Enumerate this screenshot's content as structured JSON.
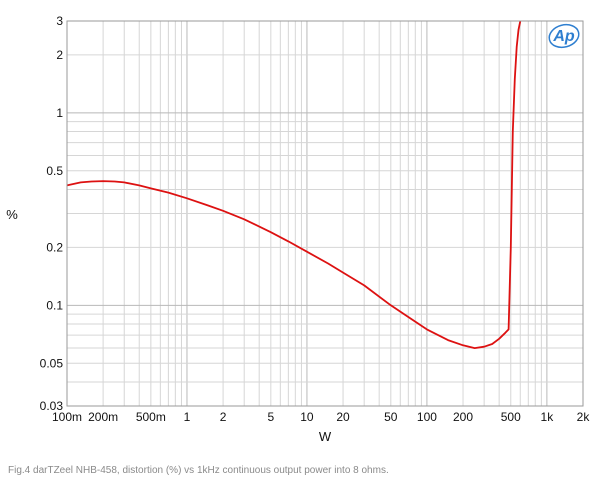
{
  "caption": "Fig.4 darTZeel NHB-458, distortion (%) vs 1kHz continuous output power into 8 ohms.",
  "logo": {
    "text": "Ap",
    "color": "#2f7fd0"
  },
  "chart_data": {
    "type": "line",
    "title": "",
    "xlabel": "W",
    "ylabel": "%",
    "xscale": "log",
    "yscale": "log",
    "xlim": [
      0.1,
      2000
    ],
    "ylim": [
      0.03,
      3
    ],
    "grid": true,
    "legend": "none",
    "x_ticks": [
      {
        "value": 0.1,
        "label": "100m"
      },
      {
        "value": 0.2,
        "label": "200m"
      },
      {
        "value": 0.5,
        "label": "500m"
      },
      {
        "value": 1,
        "label": "1"
      },
      {
        "value": 2,
        "label": "2"
      },
      {
        "value": 5,
        "label": "5"
      },
      {
        "value": 10,
        "label": "10"
      },
      {
        "value": 20,
        "label": "20"
      },
      {
        "value": 50,
        "label": "50"
      },
      {
        "value": 100,
        "label": "100"
      },
      {
        "value": 200,
        "label": "200"
      },
      {
        "value": 500,
        "label": "500"
      },
      {
        "value": 1000,
        "label": "1k"
      },
      {
        "value": 2000,
        "label": "2k"
      }
    ],
    "y_ticks": [
      {
        "value": 0.03,
        "label": "0.03"
      },
      {
        "value": 0.05,
        "label": "0.05"
      },
      {
        "value": 0.1,
        "label": "0.1"
      },
      {
        "value": 0.2,
        "label": "0.2"
      },
      {
        "value": 0.5,
        "label": "0.5"
      },
      {
        "value": 1,
        "label": "1"
      },
      {
        "value": 2,
        "label": "2"
      },
      {
        "value": 3,
        "label": "3"
      }
    ],
    "series": [
      {
        "color": "#dd1111",
        "x": [
          0.1,
          0.13,
          0.16,
          0.2,
          0.25,
          0.3,
          0.4,
          0.5,
          0.7,
          1,
          1.5,
          2,
          3,
          5,
          7,
          10,
          15,
          20,
          30,
          50,
          70,
          100,
          150,
          200,
          250,
          300,
          350,
          400,
          450,
          480,
          500,
          520,
          540,
          560,
          580,
          600
        ],
        "y": [
          0.42,
          0.435,
          0.44,
          0.442,
          0.44,
          0.435,
          0.42,
          0.405,
          0.385,
          0.36,
          0.33,
          0.31,
          0.28,
          0.24,
          0.215,
          0.19,
          0.165,
          0.148,
          0.127,
          0.1,
          0.087,
          0.075,
          0.066,
          0.062,
          0.06,
          0.061,
          0.063,
          0.067,
          0.072,
          0.075,
          0.2,
          0.8,
          1.5,
          2.2,
          2.7,
          3.0
        ]
      }
    ]
  }
}
